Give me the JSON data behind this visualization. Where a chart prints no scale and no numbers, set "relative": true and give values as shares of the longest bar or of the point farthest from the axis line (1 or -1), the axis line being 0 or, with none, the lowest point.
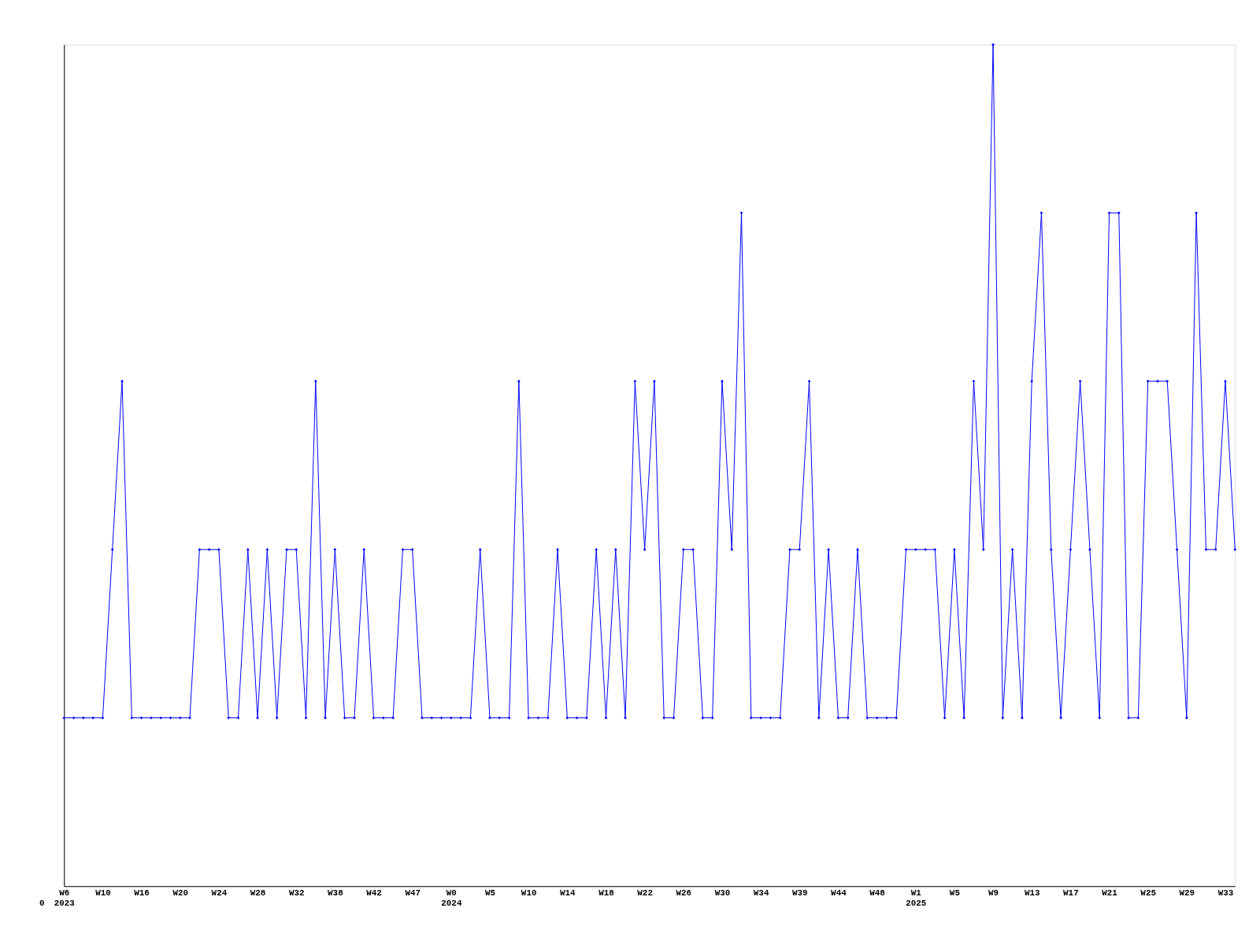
{
  "chart_data": {
    "type": "line",
    "relative": true,
    "marker": "diamond",
    "line_style": "solid",
    "grid": false,
    "categories": [
      "W6 2023",
      null,
      null,
      null,
      "W10",
      null,
      null,
      null,
      "W16",
      null,
      null,
      null,
      "W20",
      null,
      null,
      null,
      "W24",
      null,
      null,
      null,
      "W28",
      null,
      null,
      null,
      "W32",
      null,
      null,
      null,
      "W38",
      null,
      null,
      null,
      "W42",
      null,
      null,
      null,
      "W47",
      null,
      null,
      null,
      "W0 2024",
      null,
      null,
      null,
      "W5",
      null,
      null,
      null,
      "W10",
      null,
      null,
      null,
      "W14",
      null,
      null,
      null,
      "W18",
      null,
      null,
      null,
      "W22",
      null,
      null,
      null,
      "W26",
      null,
      null,
      null,
      "W30",
      null,
      null,
      null,
      "W34",
      null,
      null,
      null,
      "W39",
      null,
      null,
      null,
      "W44",
      null,
      null,
      null,
      "W48",
      null,
      null,
      null,
      "W1 2025",
      null,
      null,
      null,
      "W5",
      null,
      null,
      null,
      "W9",
      null,
      null,
      null,
      "W13",
      null,
      null,
      null,
      "W17",
      null,
      null,
      null,
      "W21",
      null,
      null,
      null,
      "W25",
      null,
      null,
      null,
      "W29",
      null,
      null,
      null,
      "W33",
      null
    ],
    "series": [
      {
        "color": "#0000ff",
        "values": [
          0.2,
          0.2,
          0.2,
          0.2,
          0.2,
          0.4,
          0.6,
          0.2,
          0.2,
          0.2,
          0.2,
          0.2,
          0.2,
          0.2,
          0.4,
          0.4,
          0.4,
          0.2,
          0.2,
          0.4,
          0.2,
          0.4,
          0.2,
          0.4,
          0.4,
          0.2,
          0.6,
          0.2,
          0.4,
          0.2,
          0.2,
          0.4,
          0.2,
          0.2,
          0.2,
          0.4,
          0.4,
          0.2,
          0.2,
          0.2,
          0.2,
          0.2,
          0.2,
          0.4,
          0.2,
          0.2,
          0.2,
          0.6,
          0.2,
          0.2,
          0.2,
          0.4,
          0.2,
          0.2,
          0.2,
          0.4,
          0.2,
          0.4,
          0.2,
          0.6,
          0.4,
          0.6,
          0.2,
          0.2,
          0.4,
          0.4,
          0.2,
          0.2,
          0.6,
          0.4,
          0.8,
          0.2,
          0.2,
          0.2,
          0.2,
          0.4,
          0.4,
          0.6,
          0.2,
          0.4,
          0.2,
          0.2,
          0.4,
          0.2,
          0.2,
          0.2,
          0.2,
          0.4,
          0.4,
          0.4,
          0.4,
          0.2,
          0.4,
          0.2,
          0.6,
          0.4,
          1,
          0.2,
          0.4,
          0.2,
          0.6,
          0.8,
          0.4,
          0.2,
          0.4,
          0.6,
          0.4,
          0.2,
          0.8,
          0.8,
          0.2,
          0.2,
          0.6,
          0.6,
          0.6,
          0.4,
          0.2,
          0.8,
          0.4,
          0.4,
          0.6,
          0.4
        ]
      }
    ],
    "annotations": [
      "0"
    ]
  }
}
